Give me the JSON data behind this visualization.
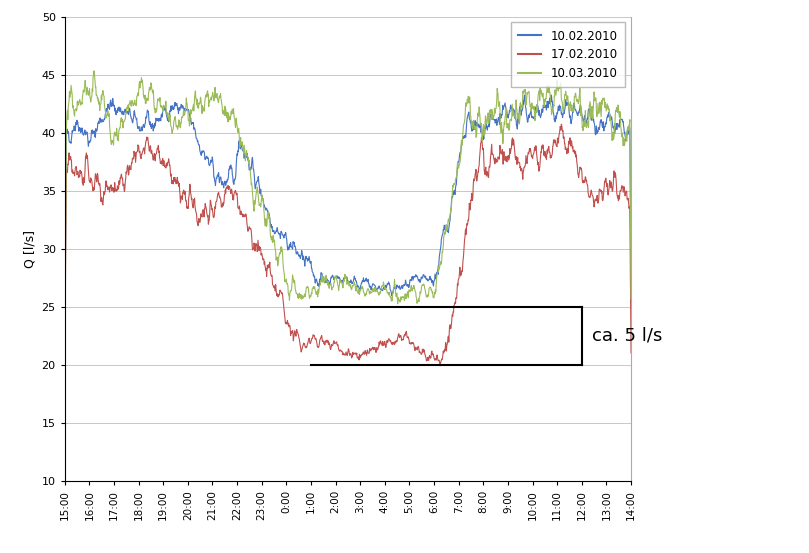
{
  "ylabel": "Q [l/s]",
  "ylim": [
    10,
    50
  ],
  "yticks": [
    10,
    15,
    20,
    25,
    30,
    35,
    40,
    45,
    50
  ],
  "time_labels": [
    "15:00",
    "16:00",
    "17:00",
    "18:00",
    "19:00",
    "20:00",
    "21:00",
    "22:00",
    "23:00",
    "0:00",
    "1:00",
    "2:00",
    "3:00",
    "4:00",
    "5:00",
    "6:00",
    "7:00",
    "8:00",
    "9:00",
    "10:00",
    "11:00",
    "12:00",
    "13:00",
    "14:00"
  ],
  "line_colors": [
    "#4472c4",
    "#c0504d",
    "#9bbb59"
  ],
  "legend_labels": [
    "10.02.2010",
    "17.02.2010",
    "10.03.2010"
  ],
  "annotation_text": "ca. 5 l/s",
  "background_color": "#ffffff",
  "grid_color": "#c8c8c8"
}
